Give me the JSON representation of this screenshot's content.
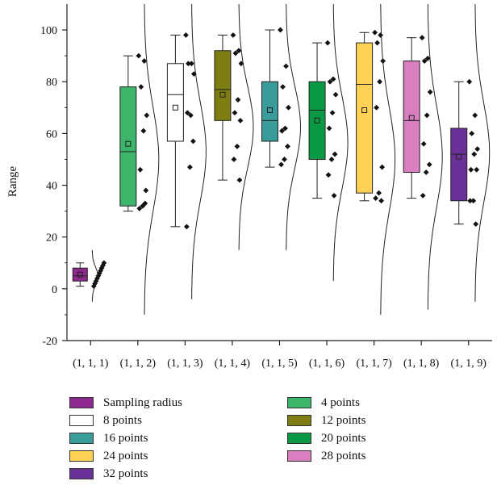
{
  "chart_data": {
    "type": "box",
    "title": "",
    "xlabel": "",
    "ylabel": "Range",
    "ylim": [
      -20,
      110
    ],
    "yticks": [
      -20,
      0,
      20,
      40,
      60,
      80,
      100
    ],
    "grid": false,
    "legend_position": "bottom",
    "categories": [
      "(1, 1, 1)",
      "(1, 1, 2)",
      "(1, 1, 3)",
      "(1, 1, 4)",
      "(1, 1, 5)",
      "(1, 1, 6)",
      "(1, 1, 7)",
      "(1, 1, 8)",
      "(1, 1, 9)"
    ],
    "series": [
      {
        "name": "Sampling radius",
        "color": "#8e2a8e",
        "whisker_low": 1,
        "q1": 3,
        "median": 5,
        "q3": 8,
        "whisker_high": 10,
        "mean": 5.5,
        "points": [
          1,
          2,
          3,
          4,
          5,
          6,
          7,
          8,
          9,
          10
        ],
        "curve_range": [
          -5,
          15
        ]
      },
      {
        "name": "4 points",
        "color": "#3db56a",
        "whisker_low": 30,
        "q1": 32,
        "median": 53,
        "q3": 78,
        "whisker_high": 90,
        "mean": 56,
        "points": [
          90,
          88,
          78,
          67,
          61,
          46,
          38,
          32,
          31,
          33
        ],
        "curve_range": [
          -10,
          110
        ]
      },
      {
        "name": "8 points",
        "color": "#ffffff",
        "whisker_low": 24,
        "q1": 57,
        "median": 75,
        "q3": 87,
        "whisker_high": 98,
        "mean": 70,
        "points": [
          98,
          87,
          87,
          83,
          67,
          68,
          57,
          47,
          24
        ],
        "curve_range": [
          -4,
          110
        ]
      },
      {
        "name": "12 points",
        "color": "#7d7d12",
        "whisker_low": 42,
        "q1": 65,
        "median": 77,
        "q3": 92,
        "whisker_high": 98,
        "mean": 75,
        "points": [
          98,
          92,
          91,
          87,
          73,
          68,
          65,
          55,
          50,
          42
        ],
        "curve_range": [
          15,
          110
        ]
      },
      {
        "name": "16 points",
        "color": "#3a9b9b",
        "whisker_low": 47,
        "q1": 57,
        "median": 65,
        "q3": 80,
        "whisker_high": 100,
        "mean": 69,
        "points": [
          100,
          86,
          78,
          70,
          62,
          61,
          55,
          50,
          48
        ],
        "curve_range": [
          15,
          110
        ]
      },
      {
        "name": "20 points",
        "color": "#0a9a44",
        "whisker_low": 35,
        "q1": 50,
        "median": 69,
        "q3": 80,
        "whisker_high": 95,
        "mean": 65,
        "points": [
          95,
          81,
          80,
          75,
          68,
          62,
          52,
          50,
          44,
          36
        ],
        "curve_range": [
          3,
          110
        ]
      },
      {
        "name": "24 points",
        "color": "#ffd257",
        "whisker_low": 34,
        "q1": 37,
        "median": 79,
        "q3": 95,
        "whisker_high": 99,
        "mean": 69,
        "points": [
          99,
          98,
          95,
          88,
          80,
          70,
          47,
          37,
          35,
          34
        ],
        "curve_range": [
          -10,
          110
        ]
      },
      {
        "name": "28 points",
        "color": "#d97fbf",
        "whisker_low": 35,
        "q1": 45,
        "median": 65,
        "q3": 88,
        "whisker_high": 97,
        "mean": 66,
        "points": [
          97,
          89,
          88,
          76,
          67,
          56,
          48,
          45,
          36
        ],
        "curve_range": [
          -8,
          110
        ]
      },
      {
        "name": "32 points",
        "color": "#6a3199",
        "whisker_low": 25,
        "q1": 34,
        "median": 52,
        "q3": 62,
        "whisker_high": 80,
        "mean": 51,
        "points": [
          80,
          67,
          60,
          54,
          52,
          46,
          46,
          34,
          34,
          25
        ],
        "curve_range": [
          -5,
          110
        ]
      }
    ],
    "legend": [
      {
        "label": "Sampling radius",
        "color": "#8e2a8e"
      },
      {
        "label": "4 points",
        "color": "#3db56a"
      },
      {
        "label": "8 points",
        "color": "#ffffff"
      },
      {
        "label": "12 points",
        "color": "#7d7d12"
      },
      {
        "label": "16 points",
        "color": "#3a9b9b"
      },
      {
        "label": "20 points",
        "color": "#0a9a44"
      },
      {
        "label": "24 points",
        "color": "#ffd257"
      },
      {
        "label": "28 points",
        "color": "#d97fbf"
      },
      {
        "label": "32 points",
        "color": "#6a3199"
      }
    ]
  }
}
